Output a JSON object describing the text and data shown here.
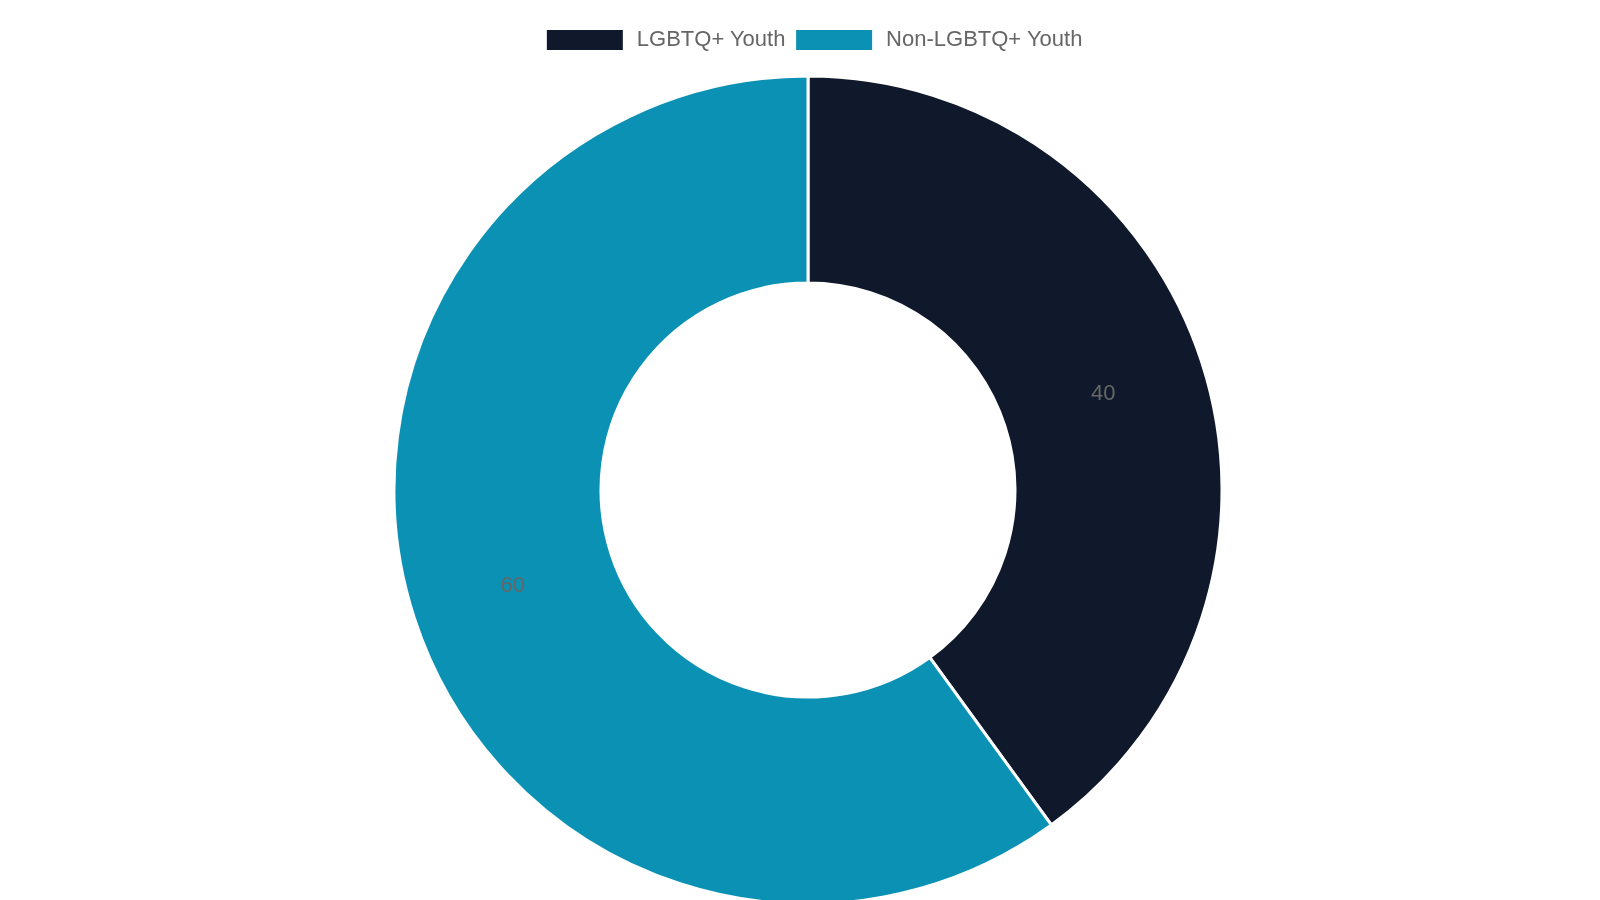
{
  "chart_data": {
    "type": "donut",
    "categories": [
      "LGBTQ+ Youth",
      "Non-LGBTQ+ Youth"
    ],
    "values": [
      40,
      60
    ],
    "colors": [
      "#10192b",
      "#0a91b4"
    ],
    "legend": "top",
    "data_labels": true
  }
}
